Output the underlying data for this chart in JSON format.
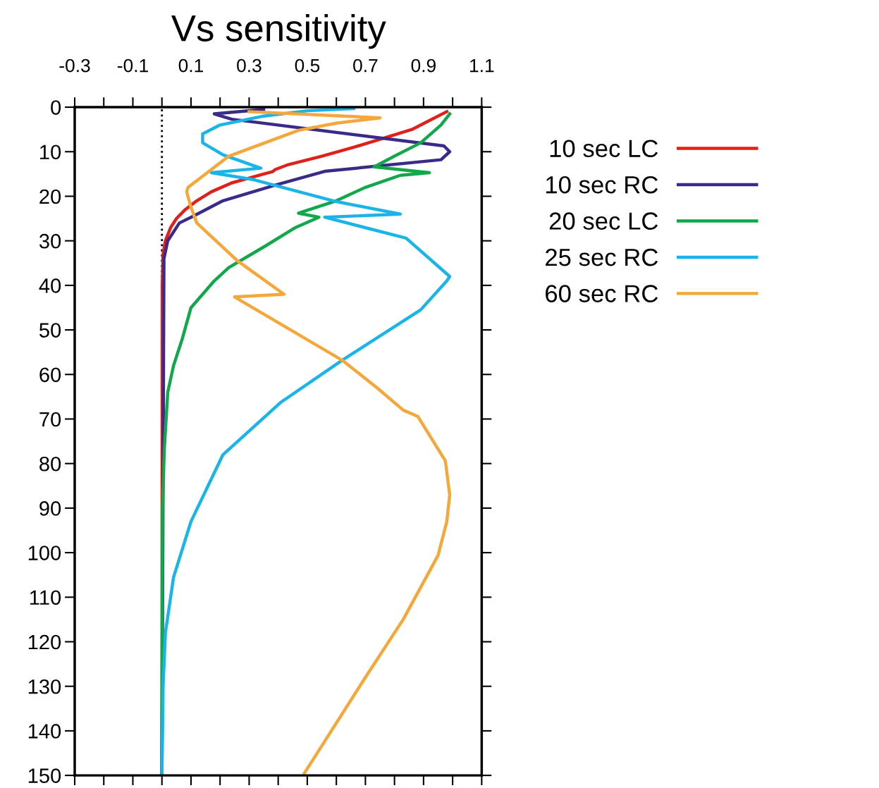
{
  "chart_data": {
    "type": "line",
    "title": "Vs sensitivity",
    "xlim": [
      -0.3,
      1.1
    ],
    "xticks": [
      -0.3,
      {
        "value": -0.2,
        "label": null
      },
      -0.1,
      {
        "value": 0,
        "label": null
      },
      0.1,
      {
        "value": 0.2,
        "label": null
      },
      0.3,
      {
        "value": 0.4,
        "label": null
      },
      0.5,
      {
        "value": 0.6,
        "label": null
      },
      0.7,
      {
        "value": 0.8,
        "label": null
      },
      0.9,
      {
        "value": 1.0,
        "label": null
      },
      1.1
    ],
    "ylim": [
      150,
      0
    ],
    "yticks": [
      0,
      10,
      20,
      30,
      40,
      50,
      60,
      70,
      80,
      90,
      100,
      110,
      120,
      130,
      140,
      150
    ],
    "ref_lines": [
      {
        "axis": "x",
        "value": 0,
        "color": "#000000",
        "line_style": "dotted"
      }
    ],
    "legend": "right",
    "grid": false,
    "series": [
      {
        "name": "10 sec LC",
        "color": "#e0201b",
        "x": [
          0.98,
          0.92,
          0.86,
          0.76,
          0.66,
          0.55,
          0.43,
          0.39,
          0.38,
          0.35,
          0.24,
          0.17,
          0.12,
          0.08,
          0.05,
          0.03,
          0.012,
          0.004,
          0.001,
          0
        ],
        "values": [
          1,
          3,
          5,
          7,
          9,
          11,
          13,
          14,
          14.5,
          15,
          17,
          19,
          21,
          23,
          25,
          27,
          30,
          33,
          40,
          150
        ]
      },
      {
        "name": "10 sec RC",
        "color": "#3a2a8a",
        "x": [
          0.35,
          0.18,
          0.24,
          0.97,
          0.99,
          0.96,
          0.56,
          0.39,
          0.21,
          0.11,
          0.06,
          0.02,
          0.007,
          0
        ],
        "values": [
          0.5,
          1.5,
          2.7,
          8.7,
          10,
          11.8,
          14.4,
          17.5,
          21,
          24.4,
          26,
          30,
          34,
          150
        ]
      },
      {
        "name": "20 sec LC",
        "color": "#10a84a",
        "x": [
          0.99,
          0.96,
          0.89,
          0.8,
          0.73,
          0.92,
          0.82,
          0.7,
          0.6,
          0.47,
          0.54,
          0.46,
          0.36,
          0.23,
          0.18,
          0.1,
          0.07,
          0.04,
          0.02,
          0.008,
          0.002,
          0
        ],
        "values": [
          1.5,
          4,
          8,
          11,
          13.4,
          14.7,
          15.3,
          18,
          21,
          23.8,
          24.7,
          27,
          31,
          36,
          39,
          45,
          52,
          58,
          64,
          77,
          90,
          150
        ]
      },
      {
        "name": "25 sec RC",
        "color": "#1ab4e8",
        "x": [
          0.66,
          0.5,
          0.35,
          0.2,
          0.14,
          0.14,
          0.21,
          0.34,
          0.17,
          0.31,
          0.6,
          0.82,
          0.56,
          0.84,
          0.99,
          0.98,
          0.89,
          0.62,
          0.41,
          0.21,
          0.1,
          0.04,
          0.012,
          0.004,
          0
        ],
        "values": [
          0.3,
          0.8,
          2,
          4,
          6,
          8,
          10.7,
          13.7,
          14.7,
          16.2,
          21.2,
          24,
          24.7,
          29.4,
          38,
          39,
          45.5,
          56.8,
          66.2,
          78,
          93,
          105.5,
          118,
          130,
          150
        ]
      },
      {
        "name": "60 sec RC",
        "color": "#f5a73a",
        "x": [
          0.3,
          0.75,
          0.6,
          0.47,
          0.23,
          0.09,
          0.085,
          0.1,
          0.12,
          0.26,
          0.42,
          0.25,
          0.62,
          0.74,
          0.83,
          0.88,
          0.975,
          0.99,
          0.98,
          0.95,
          0.83,
          0.7,
          0.49
        ],
        "values": [
          1,
          2.4,
          3.6,
          5.2,
          11,
          18,
          19,
          22.5,
          26,
          34.5,
          42,
          42.6,
          56.8,
          63,
          68,
          69.4,
          79.4,
          87,
          93,
          100.6,
          115,
          128,
          149.5
        ]
      }
    ]
  }
}
